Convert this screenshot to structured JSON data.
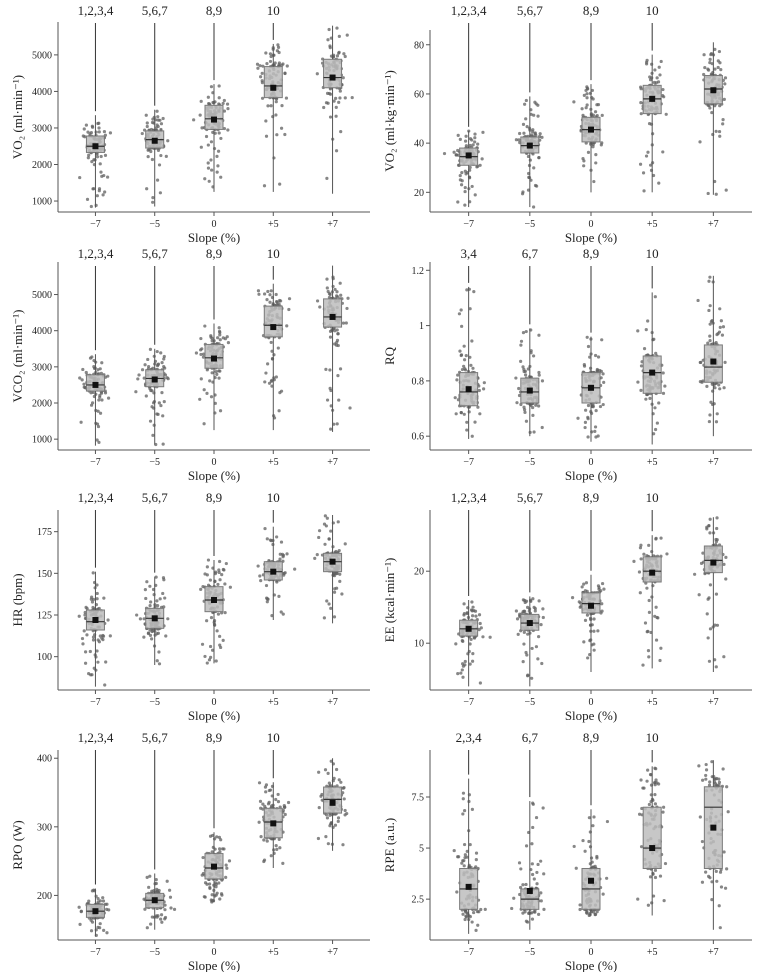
{
  "chart_data": [
    {
      "type": "box",
      "panel": "A",
      "ylabel": "VO₂ (ml·min⁻¹)",
      "xlabel": "Slope (%)",
      "categories": [
        "−7",
        "−5",
        "0",
        "+5",
        "+7"
      ],
      "yticks": [
        1000,
        2000,
        3000,
        4000,
        5000
      ],
      "ylim": [
        700,
        5900
      ],
      "annotations": [
        "1,2,3,4",
        "5,6,7",
        "8,9",
        "10",
        ""
      ],
      "boxes": [
        {
          "min": 820,
          "q1": 2330,
          "median": 2500,
          "q3": 2780,
          "max": 3350,
          "mean": 2500
        },
        {
          "min": 850,
          "q1": 2450,
          "median": 2680,
          "q3": 2920,
          "max": 3500,
          "mean": 2650
        },
        {
          "min": 1250,
          "q1": 2960,
          "median": 3250,
          "q3": 3620,
          "max": 4200,
          "mean": 3230
        },
        {
          "min": 1250,
          "q1": 3830,
          "median": 4150,
          "q3": 4680,
          "max": 5300,
          "mean": 4100
        },
        {
          "min": 1200,
          "q1": 4100,
          "median": 4380,
          "q3": 4880,
          "max": 5800,
          "mean": 4380
        }
      ]
    },
    {
      "type": "box",
      "panel": "B",
      "ylabel": "VO₂ (ml·kg·min⁻¹)",
      "xlabel": "Slope (%)",
      "categories": [
        "−7",
        "−5",
        "0",
        "+5",
        "+7"
      ],
      "yticks": [
        20,
        40,
        60,
        80
      ],
      "ylim": [
        12,
        86
      ],
      "annotations": [
        "1,2,3,4",
        "5,6,7",
        "8,9",
        "10",
        ""
      ],
      "boxes": [
        {
          "min": 14,
          "q1": 31,
          "median": 34.5,
          "q3": 38,
          "max": 45,
          "mean": 35
        },
        {
          "min": 14,
          "q1": 36,
          "median": 39,
          "q3": 42.5,
          "max": 59,
          "mean": 39
        },
        {
          "min": 20,
          "q1": 40.5,
          "median": 45.5,
          "q3": 50.5,
          "max": 64,
          "mean": 45.5
        },
        {
          "min": 20,
          "q1": 52,
          "median": 58,
          "q3": 63.5,
          "max": 76,
          "mean": 58
        },
        {
          "min": 19,
          "q1": 56,
          "median": 62,
          "q3": 67.5,
          "max": 81,
          "mean": 61.5
        }
      ]
    },
    {
      "type": "box",
      "panel": "C",
      "ylabel": "VCO₂ (ml·min⁻¹)",
      "xlabel": "Slope (%)",
      "categories": [
        "−7",
        "−5",
        "0",
        "+5",
        "+7"
      ],
      "yticks": [
        1000,
        2000,
        3000,
        4000,
        5000
      ],
      "ylim": [
        700,
        5900
      ],
      "annotations": [
        "1,2,3,4",
        "5,6,7",
        "8,9",
        "10",
        ""
      ],
      "boxes": [
        {
          "min": 820,
          "q1": 2330,
          "median": 2500,
          "q3": 2780,
          "max": 3350,
          "mean": 2500
        },
        {
          "min": 850,
          "q1": 2450,
          "median": 2680,
          "q3": 2920,
          "max": 3500,
          "mean": 2650
        },
        {
          "min": 1250,
          "q1": 2960,
          "median": 3250,
          "q3": 3620,
          "max": 4200,
          "mean": 3230
        },
        {
          "min": 1250,
          "q1": 3830,
          "median": 4150,
          "q3": 4680,
          "max": 5300,
          "mean": 4100
        },
        {
          "min": 1200,
          "q1": 4100,
          "median": 4380,
          "q3": 4880,
          "max": 5800,
          "mean": 4380
        }
      ]
    },
    {
      "type": "box",
      "panel": "D",
      "ylabel": "RQ",
      "xlabel": "Slope (%)",
      "categories": [
        "−7",
        "−5",
        "0",
        "+5",
        "+7"
      ],
      "yticks": [
        0.6,
        0.8,
        1,
        1.2
      ],
      "ylim": [
        0.55,
        1.23
      ],
      "annotations": [
        "3,4",
        "6,7",
        "8,9",
        "10",
        ""
      ],
      "boxes": [
        {
          "min": 0.59,
          "q1": 0.71,
          "median": 0.76,
          "q3": 0.83,
          "max": 1.14,
          "mean": 0.77
        },
        {
          "min": 0.6,
          "q1": 0.72,
          "median": 0.76,
          "q3": 0.81,
          "max": 0.99,
          "mean": 0.765
        },
        {
          "min": 0.58,
          "q1": 0.72,
          "median": 0.775,
          "q3": 0.83,
          "max": 0.96,
          "mean": 0.775
        },
        {
          "min": 0.57,
          "q1": 0.755,
          "median": 0.83,
          "q3": 0.89,
          "max": 1.12,
          "mean": 0.83
        },
        {
          "min": 0.6,
          "q1": 0.795,
          "median": 0.85,
          "q3": 0.93,
          "max": 1.18,
          "mean": 0.87
        }
      ]
    },
    {
      "type": "box",
      "panel": "E",
      "ylabel": "HR (bpm)",
      "xlabel": "Slope (%)",
      "categories": [
        "−7",
        "−5",
        "0",
        "+5",
        "+7"
      ],
      "yticks": [
        100,
        125,
        150,
        175
      ],
      "ylim": [
        80,
        188
      ],
      "annotations": [
        "1,2,3,4",
        "5,6,7",
        "8,9",
        "10",
        ""
      ],
      "boxes": [
        {
          "min": 82,
          "q1": 116,
          "median": 121,
          "q3": 128,
          "max": 151,
          "mean": 122
        },
        {
          "min": 95,
          "q1": 117,
          "median": 123,
          "q3": 129,
          "max": 148,
          "mean": 123
        },
        {
          "min": 96,
          "q1": 127,
          "median": 134,
          "q3": 142,
          "max": 158,
          "mean": 134
        },
        {
          "min": 122,
          "q1": 146,
          "median": 151,
          "q3": 157,
          "max": 178,
          "mean": 151
        },
        {
          "min": 120,
          "q1": 151,
          "median": 157,
          "q3": 162,
          "max": 185,
          "mean": 157
        }
      ]
    },
    {
      "type": "box",
      "panel": "F",
      "ylabel": "EE (kcal·min⁻¹)",
      "xlabel": "Slope (%)",
      "categories": [
        "−7",
        "−5",
        "0",
        "+5",
        "+7"
      ],
      "yticks": [
        10,
        20
      ],
      "ylim": [
        3.5,
        28.5
      ],
      "annotations": [
        "1,2,3,4",
        "5,6,7",
        "8,9",
        "10",
        ""
      ],
      "boxes": [
        {
          "min": 4,
          "q1": 11,
          "median": 12,
          "q3": 13.2,
          "max": 16,
          "mean": 12
        },
        {
          "min": 4,
          "q1": 11.8,
          "median": 12.8,
          "q3": 14,
          "max": 16.5,
          "mean": 12.8
        },
        {
          "min": 6,
          "q1": 14.2,
          "median": 15.5,
          "q3": 17,
          "max": 19.5,
          "mean": 15.2
        },
        {
          "min": 6.5,
          "q1": 18.5,
          "median": 20,
          "q3": 22,
          "max": 25,
          "mean": 19.8
        },
        {
          "min": 6,
          "q1": 19.8,
          "median": 21.5,
          "q3": 23.5,
          "max": 27.5,
          "mean": 21.2
        }
      ]
    },
    {
      "type": "box",
      "panel": "G",
      "ylabel": "RPO (W)",
      "xlabel": "Slope (%)",
      "categories": [
        "−7",
        "−5",
        "0",
        "+5",
        "+7"
      ],
      "yticks": [
        200,
        300,
        400
      ],
      "ylim": [
        135,
        412
      ],
      "annotations": [
        "1,2,3,4",
        "5,6,7",
        "8,9",
        "10",
        ""
      ],
      "boxes": [
        {
          "min": 140,
          "q1": 168,
          "median": 177,
          "q3": 187,
          "max": 210,
          "mean": 177
        },
        {
          "min": 150,
          "q1": 182,
          "median": 193,
          "q3": 203,
          "max": 232,
          "mean": 193
        },
        {
          "min": 190,
          "q1": 224,
          "median": 240,
          "q3": 261,
          "max": 292,
          "mean": 242
        },
        {
          "min": 240,
          "q1": 284,
          "median": 307,
          "q3": 327,
          "max": 365,
          "mean": 305
        },
        {
          "min": 265,
          "q1": 320,
          "median": 340,
          "q3": 358,
          "max": 400,
          "mean": 335
        }
      ]
    },
    {
      "type": "box",
      "panel": "H",
      "ylabel": "RPE (a.u.)",
      "xlabel": "Slope (%)",
      "categories": [
        "−7",
        "−5",
        "0",
        "+5",
        "+7"
      ],
      "yticks": [
        2.5,
        5,
        7.5
      ],
      "ylim": [
        0.5,
        9.8
      ],
      "annotations": [
        "2,3,4",
        "6,7",
        "8,9",
        "10",
        ""
      ],
      "boxes": [
        {
          "min": 0.8,
          "q1": 2,
          "median": 3,
          "q3": 4,
          "max": 8.4,
          "mean": 3.1
        },
        {
          "min": 1,
          "q1": 2,
          "median": 2.5,
          "q3": 3,
          "max": 7.3,
          "mean": 2.9
        },
        {
          "min": 1.7,
          "q1": 2,
          "median": 3,
          "q3": 4,
          "max": 6.9,
          "mean": 3.4
        },
        {
          "min": 1.7,
          "q1": 4,
          "median": 5,
          "q3": 7,
          "max": 9,
          "mean": 5
        },
        {
          "min": 1,
          "q1": 4,
          "median": 7,
          "q3": 8,
          "max": 9.3,
          "mean": 6
        }
      ]
    }
  ]
}
